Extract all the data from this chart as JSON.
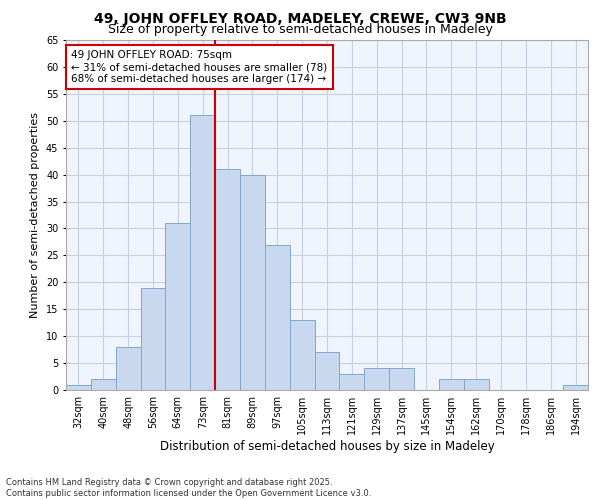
{
  "title1": "49, JOHN OFFLEY ROAD, MADELEY, CREWE, CW3 9NB",
  "title2": "Size of property relative to semi-detached houses in Madeley",
  "xlabel": "Distribution of semi-detached houses by size in Madeley",
  "ylabel": "Number of semi-detached properties",
  "categories": [
    "32sqm",
    "40sqm",
    "48sqm",
    "56sqm",
    "64sqm",
    "73sqm",
    "81sqm",
    "89sqm",
    "97sqm",
    "105sqm",
    "113sqm",
    "121sqm",
    "129sqm",
    "137sqm",
    "145sqm",
    "154sqm",
    "162sqm",
    "170sqm",
    "178sqm",
    "186sqm",
    "194sqm"
  ],
  "values": [
    1,
    2,
    8,
    19,
    31,
    51,
    41,
    40,
    27,
    13,
    7,
    3,
    4,
    4,
    0,
    2,
    2,
    0,
    0,
    0,
    1
  ],
  "bar_color": "#c8d8ef",
  "bar_edge_color": "#7fa8d0",
  "vline_x_index": 5,
  "vline_color": "#cc0000",
  "annotation_title": "49 JOHN OFFLEY ROAD: 75sqm",
  "annotation_line1": "← 31% of semi-detached houses are smaller (78)",
  "annotation_line2": "68% of semi-detached houses are larger (174) →",
  "annotation_box_color": "#ffffff",
  "annotation_edge_color": "#cc0000",
  "ylim": [
    0,
    65
  ],
  "footnote1": "Contains HM Land Registry data © Crown copyright and database right 2025.",
  "footnote2": "Contains public sector information licensed under the Open Government Licence v3.0.",
  "bg_color": "#ffffff",
  "plot_bg_color": "#f0f4fc",
  "grid_color": "#c8d0e0",
  "title1_fontsize": 10,
  "title2_fontsize": 9,
  "tick_fontsize": 7,
  "ylabel_fontsize": 8,
  "xlabel_fontsize": 8.5,
  "ann_fontsize": 7.5,
  "footnote_fontsize": 6
}
